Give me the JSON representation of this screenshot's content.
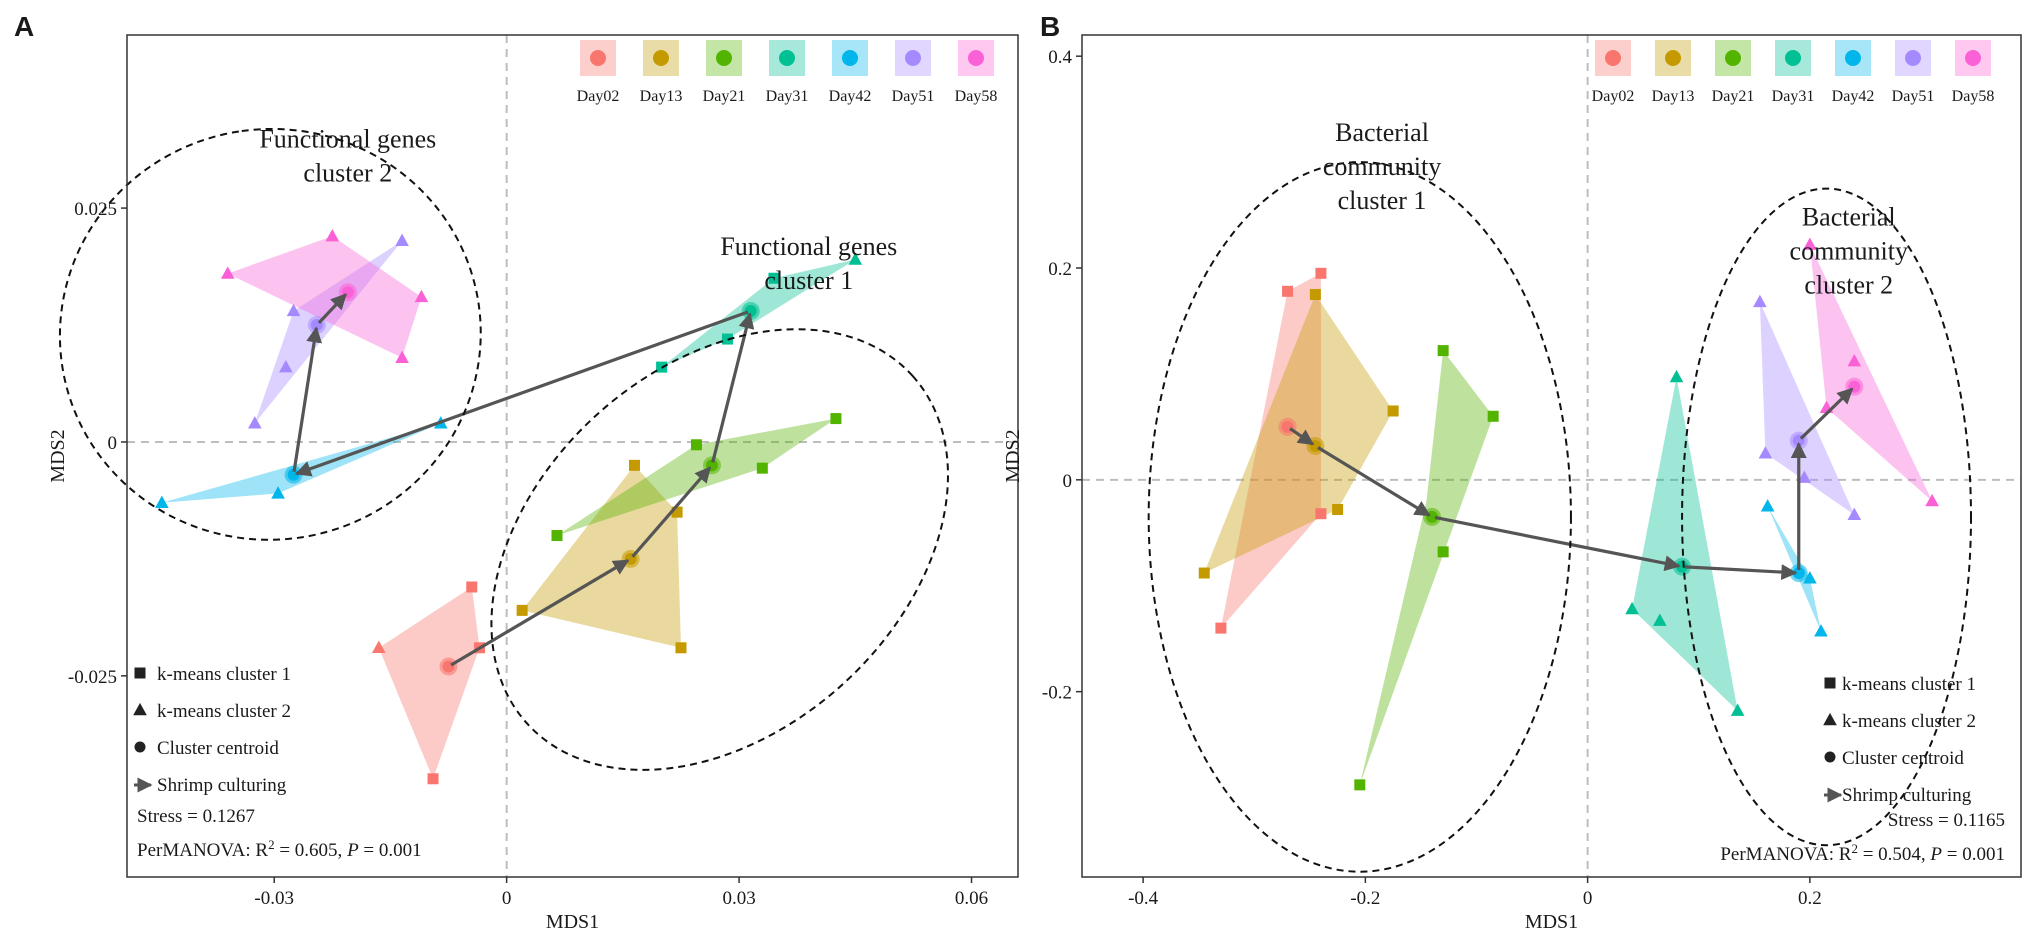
{
  "chart_data": [
    {
      "type": "scatter",
      "panel_label": "A",
      "xlabel": "MDS1",
      "ylabel": "MDS2",
      "xlim": [
        -0.049,
        0.066
      ],
      "ylim": [
        -0.0465,
        0.0435
      ],
      "xticks": [
        -0.03,
        0,
        0.03,
        0.06
      ],
      "xtick_labels": [
        "-0.03",
        "0",
        "0.03",
        "0.06"
      ],
      "yticks": [
        -0.025,
        0,
        0.025
      ],
      "ytick_labels": [
        "-0.025",
        "0",
        "0.025"
      ],
      "legend": [
        "Day02",
        "Day13",
        "Day21",
        "Day31",
        "Day42",
        "Day51",
        "Day58"
      ],
      "series": [
        {
          "name": "Day02",
          "color": "#F8766D",
          "points": [
            {
              "x": -0.0075,
              "y": -0.024,
              "shape": "circle"
            },
            {
              "x": -0.0165,
              "y": -0.022,
              "shape": "triangle"
            },
            {
              "x": -0.0045,
              "y": -0.0155,
              "shape": "square"
            },
            {
              "x": -0.0035,
              "y": -0.022,
              "shape": "square"
            },
            {
              "x": -0.0095,
              "y": -0.036,
              "shape": "square"
            }
          ],
          "hull": [
            [
              -0.0165,
              -0.022
            ],
            [
              -0.0045,
              -0.0155
            ],
            [
              -0.0035,
              -0.022
            ],
            [
              -0.0095,
              -0.036
            ]
          ]
        },
        {
          "name": "Day13",
          "color": "#C49A00",
          "points": [
            {
              "x": 0.016,
              "y": -0.0125,
              "shape": "circle"
            },
            {
              "x": 0.0165,
              "y": -0.0025,
              "shape": "square"
            },
            {
              "x": 0.022,
              "y": -0.0075,
              "shape": "square"
            },
            {
              "x": 0.0225,
              "y": -0.022,
              "shape": "square"
            },
            {
              "x": 0.002,
              "y": -0.018,
              "shape": "square"
            }
          ],
          "hull": [
            [
              0.0165,
              -0.0025
            ],
            [
              0.022,
              -0.0075
            ],
            [
              0.0225,
              -0.022
            ],
            [
              0.002,
              -0.018
            ]
          ]
        },
        {
          "name": "Day21",
          "color": "#53B400",
          "points": [
            {
              "x": 0.0265,
              "y": -0.0025,
              "shape": "circle"
            },
            {
              "x": 0.0425,
              "y": 0.0025,
              "shape": "square"
            },
            {
              "x": 0.0245,
              "y": -0.0003,
              "shape": "square"
            },
            {
              "x": 0.033,
              "y": -0.0028,
              "shape": "square"
            },
            {
              "x": 0.0065,
              "y": -0.01,
              "shape": "square"
            }
          ],
          "hull": [
            [
              0.0065,
              -0.01
            ],
            [
              0.0245,
              -0.0003
            ],
            [
              0.0425,
              0.0025
            ],
            [
              0.033,
              -0.0028
            ]
          ]
        },
        {
          "name": "Day31",
          "color": "#00C094",
          "points": [
            {
              "x": 0.0315,
              "y": 0.014,
              "shape": "circle"
            },
            {
              "x": 0.0345,
              "y": 0.0175,
              "shape": "square"
            },
            {
              "x": 0.045,
              "y": 0.0195,
              "shape": "triangle"
            },
            {
              "x": 0.0285,
              "y": 0.011,
              "shape": "square"
            },
            {
              "x": 0.02,
              "y": 0.008,
              "shape": "square"
            }
          ],
          "hull": [
            [
              0.02,
              0.008
            ],
            [
              0.0345,
              0.0175
            ],
            [
              0.045,
              0.0195
            ],
            [
              0.0285,
              0.011
            ]
          ]
        },
        {
          "name": "Day42",
          "color": "#00B6EB",
          "points": [
            {
              "x": -0.0275,
              "y": -0.0035,
              "shape": "circle"
            },
            {
              "x": -0.0085,
              "y": 0.002,
              "shape": "triangle"
            },
            {
              "x": -0.0445,
              "y": -0.0065,
              "shape": "triangle"
            },
            {
              "x": -0.0295,
              "y": -0.0055,
              "shape": "triangle"
            }
          ],
          "hull": [
            [
              -0.0445,
              -0.0065
            ],
            [
              -0.0085,
              0.002
            ],
            [
              -0.0295,
              -0.0055
            ]
          ]
        },
        {
          "name": "Day51",
          "color": "#A58AFF",
          "points": [
            {
              "x": -0.0245,
              "y": 0.0125,
              "shape": "circle"
            },
            {
              "x": -0.0135,
              "y": 0.0215,
              "shape": "triangle"
            },
            {
              "x": -0.0275,
              "y": 0.014,
              "shape": "triangle"
            },
            {
              "x": -0.0285,
              "y": 0.008,
              "shape": "triangle"
            },
            {
              "x": -0.0325,
              "y": 0.002,
              "shape": "triangle"
            }
          ],
          "hull": [
            [
              -0.0325,
              0.002
            ],
            [
              -0.0275,
              0.014
            ],
            [
              -0.0135,
              0.0215
            ]
          ]
        },
        {
          "name": "Day58",
          "color": "#FB61D7",
          "points": [
            {
              "x": -0.0205,
              "y": 0.016,
              "shape": "circle"
            },
            {
              "x": -0.036,
              "y": 0.018,
              "shape": "triangle"
            },
            {
              "x": -0.0225,
              "y": 0.022,
              "shape": "triangle"
            },
            {
              "x": -0.011,
              "y": 0.0155,
              "shape": "triangle"
            },
            {
              "x": -0.0135,
              "y": 0.009,
              "shape": "triangle"
            }
          ],
          "hull": [
            [
              -0.036,
              0.018
            ],
            [
              -0.0225,
              0.022
            ],
            [
              -0.011,
              0.0155
            ],
            [
              -0.0135,
              0.009
            ]
          ]
        }
      ],
      "trajectory": [
        [
          -0.0075,
          -0.024
        ],
        [
          0.016,
          -0.0125
        ],
        [
          0.0265,
          -0.0025
        ],
        [
          0.0315,
          0.014
        ],
        [
          -0.0275,
          -0.0035
        ],
        [
          -0.0245,
          0.0125
        ],
        [
          -0.0205,
          0.016
        ]
      ],
      "ellipses": [
        {
          "cx": -0.0305,
          "cy": 0.0115,
          "rx": 0.0265,
          "ry": 0.0225,
          "rot": 98
        },
        {
          "cx": 0.0275,
          "cy": -0.0115,
          "rx": 0.0335,
          "ry": 0.0195,
          "rot": 42
        }
      ],
      "annotations": [
        {
          "lines": [
            "Functional genes",
            "cluster 2"
          ],
          "x": -0.0205,
          "y": 0.0315,
          "anchor": "middle"
        },
        {
          "lines": [
            "Functional genes",
            "cluster 1"
          ],
          "x": 0.039,
          "y": 0.02,
          "anchor": "middle"
        }
      ],
      "shape_legend": [
        {
          "shape": "square",
          "label": "k-means cluster 1"
        },
        {
          "shape": "triangle",
          "label": "k-means cluster 2"
        },
        {
          "shape": "circle",
          "label": "Cluster centroid"
        },
        {
          "shape": "arrow",
          "label": "Shrimp culturing"
        }
      ],
      "stress": "Stress = 0.1267",
      "permanova": {
        "prefix": "PerMANOVA: R",
        "sup": "2",
        "stat": " = 0.605, ",
        "p_label": "P",
        "p_value": " = 0.001"
      }
    },
    {
      "type": "scatter",
      "panel_label": "B",
      "xlabel": "MDS1",
      "ylabel": "MDS2",
      "xlim": [
        -0.455,
        0.39
      ],
      "ylim": [
        -0.375,
        0.42
      ],
      "xticks": [
        -0.4,
        -0.2,
        0,
        0.2
      ],
      "xtick_labels": [
        "-0.4",
        "-0.2",
        "0",
        "0.2"
      ],
      "yticks": [
        -0.2,
        0,
        0.2,
        0.4
      ],
      "ytick_labels": [
        "-0.2",
        "0",
        "0.2",
        "0.4"
      ],
      "legend": [
        "Day02",
        "Day13",
        "Day21",
        "Day31",
        "Day42",
        "Day51",
        "Day58"
      ],
      "series": [
        {
          "name": "Day02",
          "color": "#F8766D",
          "points": [
            {
              "x": -0.27,
              "y": 0.05,
              "shape": "circle"
            },
            {
              "x": -0.24,
              "y": 0.195,
              "shape": "square"
            },
            {
              "x": -0.27,
              "y": 0.178,
              "shape": "square"
            },
            {
              "x": -0.24,
              "y": -0.032,
              "shape": "square"
            },
            {
              "x": -0.33,
              "y": -0.14,
              "shape": "square"
            }
          ],
          "hull": [
            [
              -0.27,
              0.178
            ],
            [
              -0.24,
              0.195
            ],
            [
              -0.24,
              -0.032
            ],
            [
              -0.33,
              -0.14
            ]
          ]
        },
        {
          "name": "Day13",
          "color": "#C49A00",
          "points": [
            {
              "x": -0.245,
              "y": 0.032,
              "shape": "circle"
            },
            {
              "x": -0.245,
              "y": 0.175,
              "shape": "square"
            },
            {
              "x": -0.175,
              "y": 0.065,
              "shape": "square"
            },
            {
              "x": -0.225,
              "y": -0.028,
              "shape": "square"
            },
            {
              "x": -0.345,
              "y": -0.088,
              "shape": "square"
            }
          ],
          "hull": [
            [
              -0.245,
              0.175
            ],
            [
              -0.175,
              0.065
            ],
            [
              -0.225,
              -0.028
            ],
            [
              -0.345,
              -0.088
            ]
          ]
        },
        {
          "name": "Day21",
          "color": "#53B400",
          "points": [
            {
              "x": -0.14,
              "y": -0.035,
              "shape": "circle"
            },
            {
              "x": -0.13,
              "y": 0.122,
              "shape": "square"
            },
            {
              "x": -0.085,
              "y": 0.06,
              "shape": "square"
            },
            {
              "x": -0.13,
              "y": -0.068,
              "shape": "square"
            },
            {
              "x": -0.205,
              "y": -0.288,
              "shape": "square"
            }
          ],
          "hull": [
            [
              -0.13,
              0.122
            ],
            [
              -0.085,
              0.06
            ],
            [
              -0.205,
              -0.288
            ],
            [
              -0.145,
              -0.02
            ]
          ]
        },
        {
          "name": "Day31",
          "color": "#00C094",
          "points": [
            {
              "x": 0.085,
              "y": -0.082,
              "shape": "circle"
            },
            {
              "x": 0.08,
              "y": 0.097,
              "shape": "triangle"
            },
            {
              "x": 0.04,
              "y": -0.122,
              "shape": "triangle"
            },
            {
              "x": 0.065,
              "y": -0.133,
              "shape": "triangle"
            },
            {
              "x": 0.135,
              "y": -0.218,
              "shape": "triangle"
            }
          ],
          "hull": [
            [
              0.08,
              0.097
            ],
            [
              0.135,
              -0.218
            ],
            [
              0.04,
              -0.122
            ]
          ]
        },
        {
          "name": "Day42",
          "color": "#00B6EB",
          "points": [
            {
              "x": 0.19,
              "y": -0.088,
              "shape": "circle"
            },
            {
              "x": 0.162,
              "y": -0.025,
              "shape": "triangle"
            },
            {
              "x": 0.2,
              "y": -0.093,
              "shape": "triangle"
            },
            {
              "x": 0.21,
              "y": -0.143,
              "shape": "triangle"
            }
          ],
          "hull": [
            [
              0.162,
              -0.025
            ],
            [
              0.2,
              -0.093
            ],
            [
              0.21,
              -0.143
            ]
          ]
        },
        {
          "name": "Day51",
          "color": "#A58AFF",
          "points": [
            {
              "x": 0.19,
              "y": 0.037,
              "shape": "circle"
            },
            {
              "x": 0.155,
              "y": 0.168,
              "shape": "triangle"
            },
            {
              "x": 0.16,
              "y": 0.025,
              "shape": "triangle"
            },
            {
              "x": 0.195,
              "y": 0.002,
              "shape": "triangle"
            },
            {
              "x": 0.24,
              "y": -0.033,
              "shape": "triangle"
            }
          ],
          "hull": [
            [
              0.155,
              0.168
            ],
            [
              0.24,
              -0.033
            ],
            [
              0.16,
              0.025
            ]
          ]
        },
        {
          "name": "Day58",
          "color": "#FB61D7",
          "points": [
            {
              "x": 0.24,
              "y": 0.088,
              "shape": "circle"
            },
            {
              "x": 0.2,
              "y": 0.222,
              "shape": "triangle"
            },
            {
              "x": 0.24,
              "y": 0.112,
              "shape": "triangle"
            },
            {
              "x": 0.215,
              "y": 0.068,
              "shape": "triangle"
            },
            {
              "x": 0.31,
              "y": -0.02,
              "shape": "triangle"
            }
          ],
          "hull": [
            [
              0.2,
              0.222
            ],
            [
              0.31,
              -0.02
            ],
            [
              0.215,
              0.068
            ]
          ]
        }
      ],
      "trajectory": [
        [
          -0.27,
          0.05
        ],
        [
          -0.245,
          0.032
        ],
        [
          -0.14,
          -0.035
        ],
        [
          0.085,
          -0.082
        ],
        [
          0.19,
          -0.088
        ],
        [
          0.19,
          0.037
        ],
        [
          0.24,
          0.088
        ]
      ],
      "ellipses": [
        {
          "cx": -0.205,
          "cy": -0.035,
          "rx": 0.19,
          "ry": 0.335,
          "rot": 0
        },
        {
          "cx": 0.215,
          "cy": -0.035,
          "rx": 0.13,
          "ry": 0.31,
          "rot": 0
        }
      ],
      "annotations": [
        {
          "lines": [
            "Bacterial",
            "community",
            "cluster 1"
          ],
          "x": -0.185,
          "y": 0.32,
          "anchor": "middle"
        },
        {
          "lines": [
            "Bacterial",
            "community",
            "cluster 2"
          ],
          "x": 0.235,
          "y": 0.24,
          "anchor": "middle"
        }
      ],
      "shape_legend": [
        {
          "shape": "square",
          "label": "k-means cluster 1"
        },
        {
          "shape": "triangle",
          "label": "k-means cluster 2"
        },
        {
          "shape": "circle",
          "label": "Cluster centroid"
        },
        {
          "shape": "arrow",
          "label": "Shrimp culturing"
        }
      ],
      "stress": "Stress = 0.1165",
      "permanova": {
        "prefix": "PerMANOVA: R",
        "sup": "2",
        "stat": " = 0.504, ",
        "p_label": "P",
        "p_value": " = 0.001"
      }
    }
  ]
}
